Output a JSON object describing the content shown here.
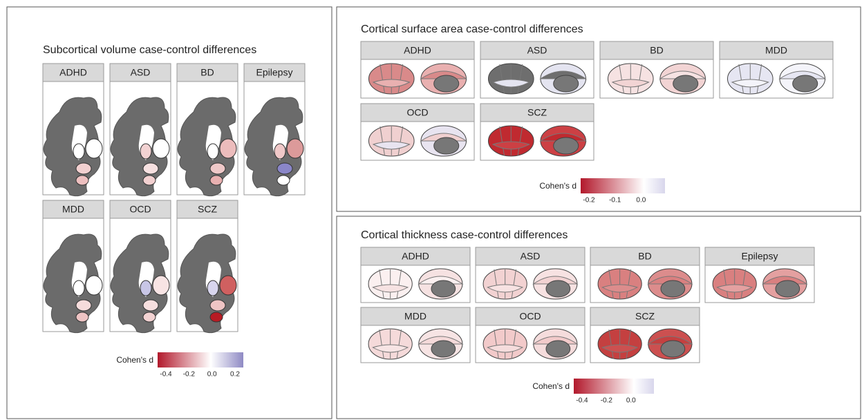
{
  "panels": [
    {
      "title": "Subcortical volume case-control differences",
      "facets": [
        "ADHD",
        "ASD",
        "BD",
        "Epilepsy",
        "MDD",
        "OCD",
        "SCZ"
      ],
      "legend": {
        "label": "Cohen's d",
        "ticks": [
          "-0.4",
          "-0.2",
          "0.0",
          "0.2"
        ]
      }
    },
    {
      "title": "Cortical surface area case-control differences",
      "facets": [
        "ADHD",
        "ASD",
        "BD",
        "MDD",
        "OCD",
        "SCZ"
      ],
      "legend": {
        "label": "Cohen's d",
        "ticks": [
          "-0.2",
          "-0.1",
          "0.0"
        ]
      }
    },
    {
      "title": "Cortical thickness case-control differences",
      "facets": [
        "ADHD",
        "ASD",
        "BD",
        "Epilepsy",
        "MDD",
        "OCD",
        "SCZ"
      ],
      "legend": {
        "label": "Cohen's d",
        "ticks": [
          "-0.4",
          "-0.2",
          "0.0"
        ]
      }
    }
  ]
}
